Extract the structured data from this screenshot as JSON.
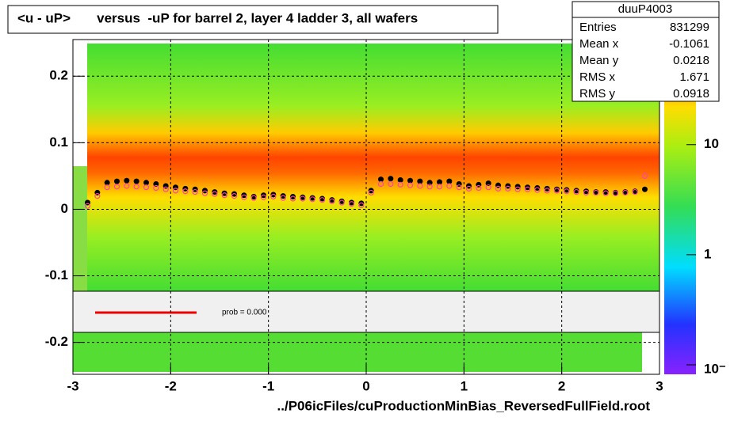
{
  "chart_data": {
    "type": "profile",
    "title": "<u - uP>       versus  -uP for barrel 2, layer 4 ladder 3, all wafers",
    "x_label": "../P06icFiles/cuProductionMinBias_ReversedFullField.root",
    "annotation": "prob = 0.000",
    "xlim": [
      -3,
      3
    ],
    "ylim": [
      -0.248,
      0.255
    ],
    "xticks": [
      -3,
      -2,
      -1,
      0,
      1,
      2,
      3
    ],
    "yticks": [
      -0.2,
      -0.1,
      0,
      0.1,
      0.2
    ],
    "grid": true,
    "zlim": [
      0.082,
      90
    ],
    "zlog": true,
    "zticks": [
      {
        "value": 0.1,
        "label": "10⁻"
      },
      1,
      10
    ],
    "x": [
      -2.85,
      -2.75,
      -2.65,
      -2.55,
      -2.45,
      -2.35,
      -2.25,
      -2.15,
      -2.05,
      -1.95,
      -1.85,
      -1.75,
      -1.65,
      -1.55,
      -1.45,
      -1.35,
      -1.25,
      -1.15,
      -1.05,
      -0.95,
      -0.85,
      -0.75,
      -0.65,
      -0.55,
      -0.45,
      -0.35,
      -0.25,
      -0.15,
      -0.05,
      0.05,
      0.15,
      0.25,
      0.35,
      0.45,
      0.55,
      0.65,
      0.75,
      0.85,
      0.95,
      1.05,
      1.15,
      1.25,
      1.35,
      1.45,
      1.55,
      1.65,
      1.75,
      1.85,
      1.95,
      2.05,
      2.15,
      2.25,
      2.35,
      2.45,
      2.55,
      2.65,
      2.75,
      2.85
    ],
    "series": [
      {
        "color": "#000000",
        "marker": "dot",
        "values": [
          0.01,
          0.025,
          0.04,
          0.042,
          0.043,
          0.042,
          0.04,
          0.038,
          0.035,
          0.033,
          0.031,
          0.03,
          0.028,
          0.026,
          0.024,
          0.023,
          0.021,
          0.019,
          0.021,
          0.022,
          0.02,
          0.019,
          0.018,
          0.017,
          0.016,
          0.014,
          0.012,
          0.01,
          0.009,
          0.028,
          0.045,
          0.046,
          0.044,
          0.043,
          0.042,
          0.04,
          0.041,
          0.042,
          0.038,
          0.035,
          0.037,
          0.039,
          0.036,
          0.035,
          0.034,
          0.033,
          0.032,
          0.031,
          0.03,
          0.029,
          0.028,
          0.027,
          0.026,
          0.026,
          0.025,
          0.026,
          0.027,
          0.03
        ]
      },
      {
        "color": "#ff44aa",
        "marker": "circle",
        "values": [
          0.005,
          0.02,
          0.033,
          0.034,
          0.035,
          0.034,
          0.033,
          0.032,
          0.03,
          0.028,
          0.027,
          0.026,
          0.024,
          0.023,
          0.021,
          0.02,
          0.018,
          0.017,
          0.018,
          0.019,
          0.017,
          0.016,
          0.016,
          0.015,
          0.014,
          0.012,
          0.01,
          0.008,
          0.006,
          0.025,
          0.038,
          0.038,
          0.037,
          0.036,
          0.035,
          0.034,
          0.034,
          0.035,
          0.033,
          0.031,
          0.032,
          0.033,
          0.031,
          0.031,
          0.03,
          0.03,
          0.029,
          0.028,
          0.028,
          0.027,
          0.026,
          0.025,
          0.025,
          0.024,
          0.024,
          0.025,
          0.026,
          0.05
        ]
      }
    ],
    "stats": {
      "title": "duuP4003",
      "rows": [
        [
          "Entries",
          831299
        ],
        [
          "Mean x",
          -0.1061
        ],
        [
          "Mean y",
          0.0218
        ],
        [
          "RMS x",
          1.671
        ],
        [
          "RMS y",
          0.0918
        ]
      ]
    }
  }
}
